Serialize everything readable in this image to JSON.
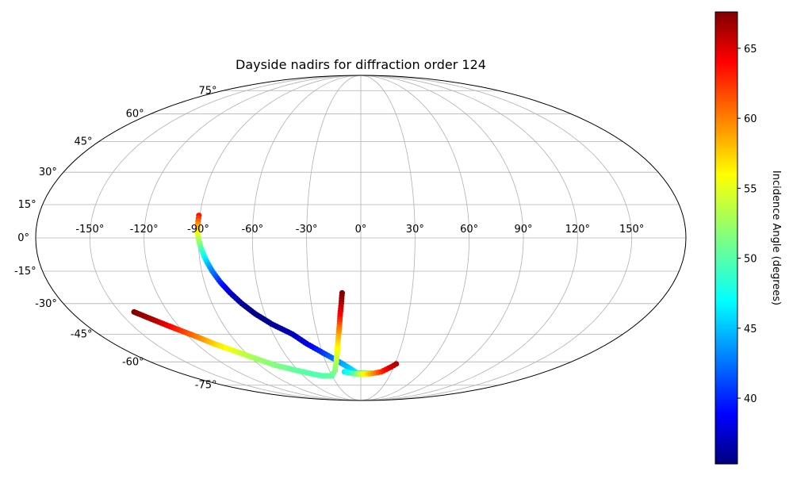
{
  "chart_data": {
    "type": "scatter",
    "projection": "mollweide",
    "title": "Dayside nadirs for diffraction order 124",
    "xlabel": "",
    "ylabel": "",
    "lon_ticks": [
      "-150°",
      "-120°",
      "-90°",
      "-60°",
      "-30°",
      "0°",
      "30°",
      "60°",
      "90°",
      "120°",
      "150°"
    ],
    "lat_ticks": [
      "75°",
      "60°",
      "45°",
      "30°",
      "15°",
      "0°",
      "-15°",
      "-30°",
      "-45°",
      "-60°",
      "-75°"
    ],
    "lon_tick_values": [
      -150,
      -120,
      -90,
      -60,
      -30,
      0,
      30,
      60,
      90,
      120,
      150
    ],
    "lat_tick_values": [
      75,
      60,
      45,
      30,
      15,
      0,
      -15,
      -30,
      -45,
      -60,
      -75
    ],
    "grid": true,
    "colormap": "jet",
    "colorbar": {
      "label": "Incidence Angle (degrees)",
      "range": [
        35.3,
        67.6
      ],
      "ticks": [
        "40",
        "45",
        "50",
        "55",
        "60",
        "65"
      ],
      "tick_values": [
        40,
        45,
        50,
        55,
        60,
        65
      ],
      "placement": "right"
    },
    "tracks": [
      {
        "points": [
          [
            -90.5,
            10.1,
            63.0
          ],
          [
            -90.6,
            5.0,
            58.0
          ],
          [
            -90.0,
            0.0,
            53.5
          ],
          [
            -88.5,
            -5.0,
            50.0
          ],
          [
            -86.5,
            -10.0,
            46.5
          ],
          [
            -84.0,
            -15.0,
            43.5
          ],
          [
            -80.8,
            -20.0,
            40.5
          ],
          [
            -76.8,
            -25.0,
            38.0
          ],
          [
            -72.0,
            -30.0,
            36.2
          ],
          [
            -66.0,
            -35.0,
            35.5
          ],
          [
            -58.0,
            -40.0,
            36.0
          ],
          [
            -47.0,
            -45.0,
            37.0
          ],
          [
            -39.4,
            -50.0,
            38.5
          ],
          [
            -29.5,
            -55.0,
            41.0
          ],
          [
            -18.5,
            -60.0,
            44.0
          ],
          [
            -4.0,
            -66.7,
            47.0
          ],
          [
            10.0,
            -66.7,
            52.0
          ]
        ]
      },
      {
        "points": [
          [
            -141.0,
            -34.0,
            67.6
          ],
          [
            -132.6,
            -38.0,
            66.0
          ],
          [
            -124.0,
            -42.0,
            63.0
          ],
          [
            -115.0,
            -46.0,
            60.0
          ],
          [
            -107.0,
            -50.0,
            57.0
          ],
          [
            -97.0,
            -54.0,
            54.5
          ],
          [
            -87.0,
            -58.0,
            52.5
          ],
          [
            -76.0,
            -62.0,
            51.5
          ],
          [
            -62.0,
            -65.0,
            50.5
          ],
          [
            -48.0,
            -67.5,
            50.0
          ],
          [
            -40.0,
            -68.5,
            50.0
          ],
          [
            -30.0,
            -68.5,
            50.5
          ],
          [
            -24.5,
            -65.0,
            51.5
          ],
          [
            -21.0,
            -60.0,
            53.0
          ],
          [
            -18.5,
            -55.0,
            54.5
          ],
          [
            -16.8,
            -50.0,
            56.0
          ],
          [
            -15.2,
            -45.0,
            58.0
          ],
          [
            -13.9,
            -40.0,
            60.5
          ],
          [
            -12.9,
            -35.0,
            63.5
          ],
          [
            -11.8,
            -30.0,
            65.5
          ],
          [
            -11.0,
            -25.0,
            67.6
          ]
        ]
      },
      {
        "points": [
          [
            -16.0,
            -66.0,
            47.0
          ],
          [
            -7.0,
            -67.2,
            50.0
          ],
          [
            0.0,
            -67.4,
            54.0
          ],
          [
            10.0,
            -67.2,
            58.0
          ],
          [
            20.0,
            -66.0,
            62.0
          ],
          [
            27.6,
            -63.0,
            65.0
          ],
          [
            31.0,
            -61.2,
            66.0
          ]
        ]
      }
    ]
  }
}
